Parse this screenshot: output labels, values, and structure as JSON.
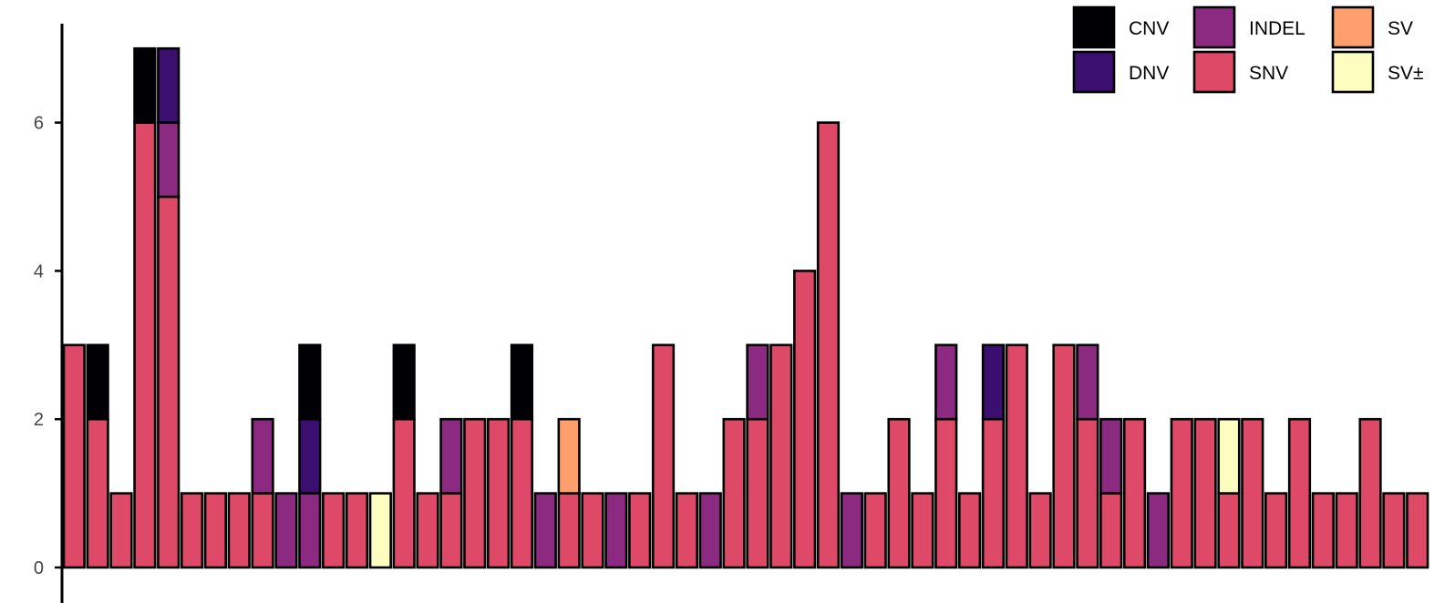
{
  "chart_data": {
    "type": "bar",
    "stacked": true,
    "title": "",
    "xlabel": "",
    "ylabel": "",
    "ylim": [
      0,
      7.3
    ],
    "yticks": [
      "0",
      "2",
      "4",
      "6"
    ],
    "grid": false,
    "legend_position": "top-right",
    "series": [
      {
        "name": "CNV",
        "color": "#000004"
      },
      {
        "name": "DNV",
        "color": "#3b0f70"
      },
      {
        "name": "INDEL",
        "color": "#8c2981"
      },
      {
        "name": "SNV",
        "color": "#de4968"
      },
      {
        "name": "SV",
        "color": "#fe9f6d"
      },
      {
        "name": "SV±",
        "color": "#fcfdbf"
      }
    ],
    "legend_order": [
      "CNV",
      "DNV",
      "INDEL",
      "SNV",
      "SV",
      "SV±"
    ],
    "bars": [
      {
        "SNV": 3
      },
      {
        "SNV": 2,
        "CNV": 1
      },
      {
        "SNV": 1
      },
      {
        "SNV": 6,
        "CNV": 1
      },
      {
        "SNV": 5,
        "INDEL": 1,
        "DNV": 1
      },
      {
        "SNV": 1
      },
      {
        "SNV": 1
      },
      {
        "SNV": 1
      },
      {
        "SNV": 1,
        "INDEL": 1
      },
      {
        "INDEL": 1
      },
      {
        "INDEL": 1,
        "DNV": 1,
        "CNV": 1
      },
      {
        "SNV": 1
      },
      {
        "SNV": 1
      },
      {
        "SV±": 1
      },
      {
        "SNV": 2,
        "CNV": 1
      },
      {
        "SNV": 1
      },
      {
        "SNV": 1,
        "INDEL": 1
      },
      {
        "SNV": 2
      },
      {
        "SNV": 2
      },
      {
        "SNV": 2,
        "CNV": 1
      },
      {
        "INDEL": 1
      },
      {
        "SV": 1,
        "SNV": 1
      },
      {
        "SNV": 1
      },
      {
        "INDEL": 1
      },
      {
        "SNV": 1
      },
      {
        "SNV": 3
      },
      {
        "SNV": 1
      },
      {
        "INDEL": 1
      },
      {
        "SNV": 2
      },
      {
        "SNV": 2,
        "INDEL": 1
      },
      {
        "SNV": 3
      },
      {
        "SNV": 4
      },
      {
        "SNV": 6
      },
      {
        "INDEL": 1
      },
      {
        "SNV": 1
      },
      {
        "SNV": 2
      },
      {
        "SNV": 1
      },
      {
        "SNV": 2,
        "INDEL": 1
      },
      {
        "SNV": 1
      },
      {
        "SNV": 2,
        "DNV": 1
      },
      {
        "SNV": 3
      },
      {
        "SNV": 1
      },
      {
        "SNV": 3
      },
      {
        "SNV": 2,
        "INDEL": 1
      },
      {
        "SNV": 1,
        "INDEL": 1
      },
      {
        "SNV": 2
      },
      {
        "INDEL": 1
      },
      {
        "SNV": 2
      },
      {
        "SNV": 2
      },
      {
        "SV±": 1,
        "SNV": 1
      },
      {
        "SNV": 2
      },
      {
        "SNV": 1
      },
      {
        "SNV": 2
      },
      {
        "SNV": 1
      },
      {
        "SNV": 1
      },
      {
        "SNV": 2
      },
      {
        "SNV": 1
      },
      {
        "SNV": 1
      }
    ]
  }
}
